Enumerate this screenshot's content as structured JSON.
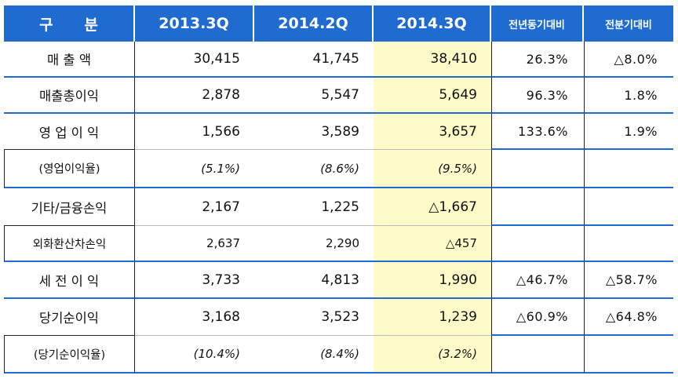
{
  "headers": {
    "category": "구      분",
    "col1": "2013.3Q",
    "col2": "2014.2Q",
    "col3": "2014.3Q",
    "col4": "전년동기대비",
    "col5": "전분기대비"
  },
  "rows": [
    {
      "label": "매  출  액",
      "v1": "30,415",
      "v2": "41,745",
      "v3": "38,410",
      "yoy": "26.3%",
      "qoq": "△8.0%"
    },
    {
      "label": "매출총이익",
      "v1": "2,878",
      "v2": "5,547",
      "v3": "5,649",
      "yoy": "96.3%",
      "qoq": "1.8%"
    },
    {
      "label": "영 업 이 익",
      "v1": "1,566",
      "v2": "3,589",
      "v3": "3,657",
      "yoy": "133.6%",
      "qoq": "1.9%"
    },
    {
      "label": "(영업이익율)",
      "v1": "(5.1%)",
      "v2": "(8.6%)",
      "v3": "(9.5%)",
      "yoy": "",
      "qoq": ""
    },
    {
      "label": "기타/금융손익",
      "v1": "2,167",
      "v2": "1,225",
      "v3": "△1,667",
      "yoy": "",
      "qoq": ""
    },
    {
      "label": "외화환산차손익",
      "v1": "2,637",
      "v2": "2,290",
      "v3": "△457",
      "yoy": "",
      "qoq": ""
    },
    {
      "label": "세 전 이 익",
      "v1": "3,733",
      "v2": "4,813",
      "v3": "1,990",
      "yoy": "△46.7%",
      "qoq": "△58.7%"
    },
    {
      "label": "당기순이익",
      "v1": "3,168",
      "v2": "3,523",
      "v3": "1,239",
      "yoy": "△60.9%",
      "qoq": "△64.8%"
    },
    {
      "label": "(당기순이익율)",
      "v1": "(10.4%)",
      "v2": "(8.4%)",
      "v3": "(3.2%)",
      "yoy": "",
      "qoq": ""
    }
  ],
  "colors": {
    "header_bg": "#1f6bd0",
    "highlight": "#fdfbc8",
    "border": "#1f6bd0"
  }
}
